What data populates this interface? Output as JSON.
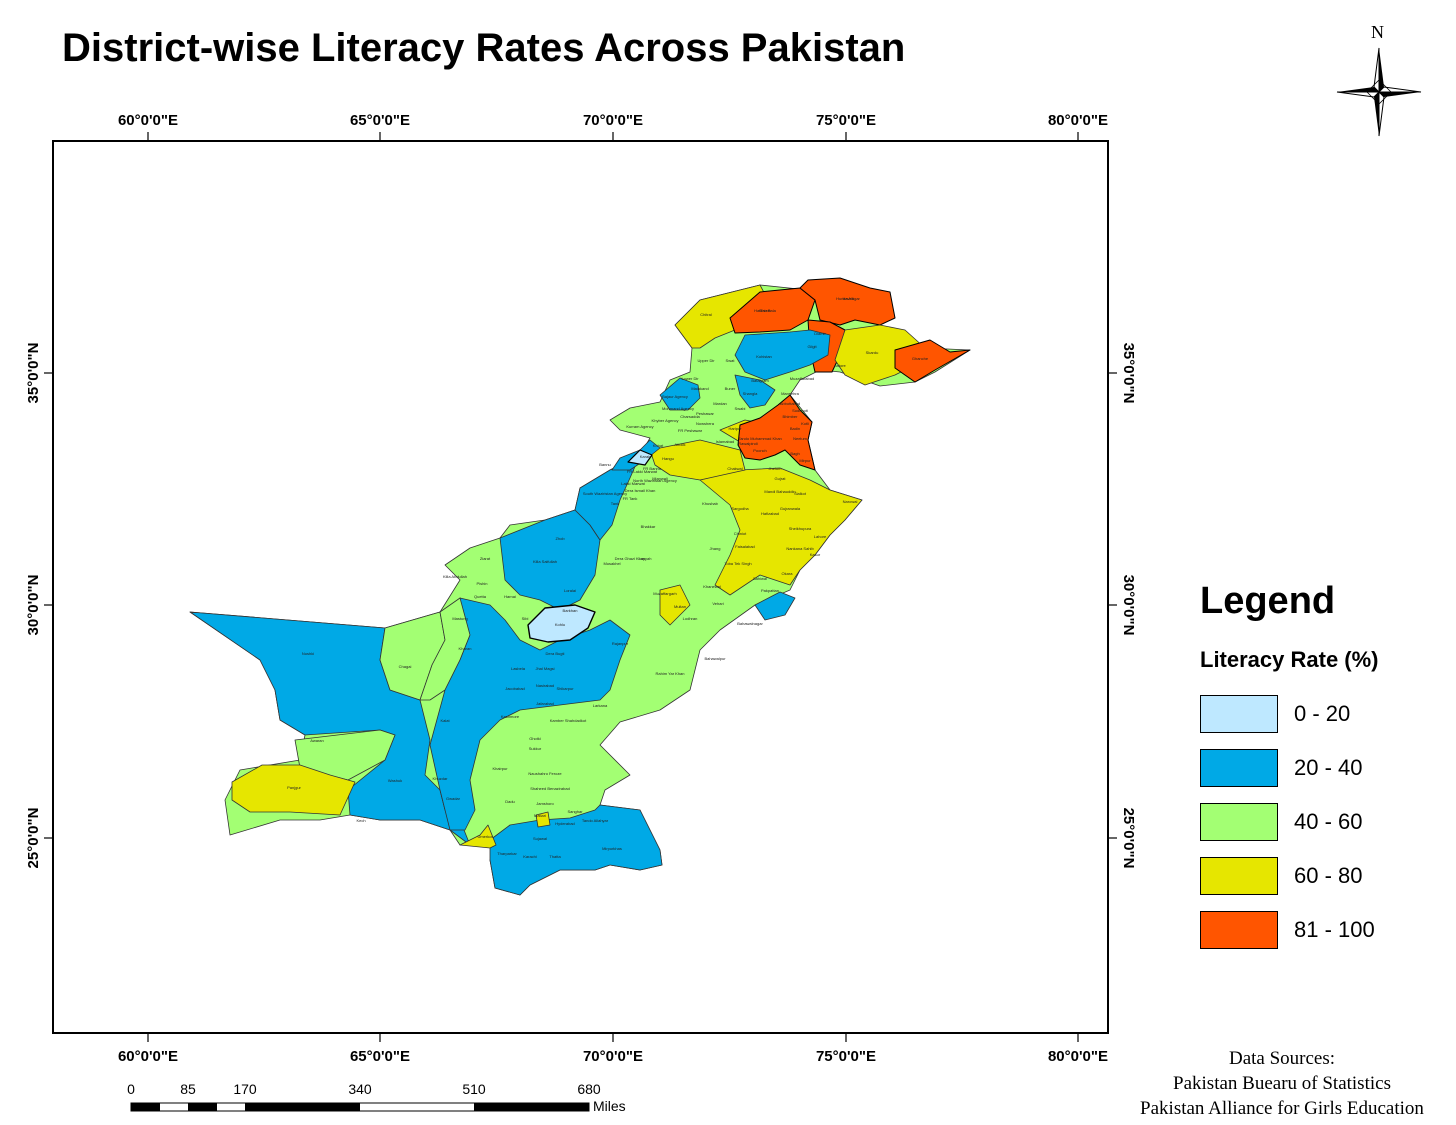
{
  "title": "District-wise Literacy Rates Across Pakistan",
  "north_arrow": {
    "label": "N",
    "icon": "north-arrow-icon"
  },
  "graticule": {
    "longitude_labels": [
      "60°0'0\"E",
      "65°0'0\"E",
      "70°0'0\"E",
      "75°0'0\"E",
      "80°0'0\"E"
    ],
    "latitude_labels": [
      "35°0'0\"N",
      "30°0'0\"N",
      "25°0'0\"N"
    ]
  },
  "legend": {
    "title": "Legend",
    "subtitle": "Literacy Rate (%)",
    "classes": [
      {
        "label": "0 - 20",
        "color": "#bee8ff"
      },
      {
        "label": "20 - 40",
        "color": "#00a9e6"
      },
      {
        "label": "40 - 60",
        "color": "#a3ff73"
      },
      {
        "label": "60 - 80",
        "color": "#e6e600"
      },
      {
        "label": "81 - 100",
        "color": "#ff5500"
      }
    ]
  },
  "scale_bar": {
    "ticks": [
      "0",
      "85",
      "170",
      "340",
      "510",
      "680"
    ],
    "unit": "Miles"
  },
  "sources": {
    "heading": "Data Sources:",
    "items": [
      "Pakistan Buearu of Statistics",
      "Pakistan Alliance for Girls Education"
    ]
  },
  "district_labels": [
    "Ghizer",
    "Hunza-Nagar",
    "Chitral",
    "Diamir",
    "Skardu",
    "Ghanche",
    "Astore",
    "Gilgit",
    "Upper Dir",
    "Swat",
    "Kohistan",
    "Batagram",
    "Mansehra",
    "Lower Dir",
    "Malakand",
    "Bajaur Agency",
    "Mohmand Agency",
    "Buner",
    "Shangla",
    "Mardan",
    "Swabi",
    "Charsadda",
    "Peshawar",
    "Nowshera",
    "Kurram Agency",
    "Khyber Agency",
    "FR Peshawar",
    "Haripur",
    "Abbottabad",
    "Muzaffarabad",
    "Neelum",
    "Bagh",
    "Poonch",
    "Rawalpindi",
    "Islamabad",
    "Attock",
    "Kohat",
    "Hangu",
    "Karak",
    "FR Bannu",
    "Bannu",
    "North Waziristan Agency",
    "Lakki Marwat",
    "FR Lakki Marwat",
    "FR Tank",
    "Tank",
    "South Waziristan Agency",
    "Dera Ismail Khan",
    "Mianwali",
    "Chakwal",
    "Jhelum",
    "Gujrat",
    "Sialkot",
    "Narowal",
    "Mandi Bahauddin",
    "Gujranwala",
    "Hafizabad",
    "Sargodha",
    "Khushab",
    "Sheikhupura",
    "Lahore",
    "Kasur",
    "Nankana Sahib",
    "Chiniot",
    "Faisalabad",
    "Toba Tek Singh",
    "Jhang",
    "Bhakkar",
    "Layyah",
    "Okara",
    "Sahiwal",
    "Pakpattan",
    "Vehari",
    "Khanewal",
    "Multan",
    "Lodhran",
    "Muzaffargarh",
    "Dera Ghazi Khan",
    "Rajanpur",
    "Bahawalnagar",
    "Bahawalpur",
    "Rahim Yar Khan",
    "Zhob",
    "Killa Saifullah",
    "Musakhel",
    "Loralai",
    "Barkhan",
    "Kohlu",
    "Dera Bugti",
    "Sibi",
    "Ziarat",
    "Pishin",
    "Killa Abdullah",
    "Quetta",
    "Harnai",
    "Mastung",
    "Nushki",
    "Chagai",
    "Kharan",
    "Kalat",
    "Khuzdar",
    "Washuk",
    "Awaran",
    "Panjgur",
    "Kech",
    "Gwadar",
    "Lasbela",
    "Jhal Magsi",
    "Nasirabad",
    "Jafarabad",
    "Jacobabad",
    "Kashmore",
    "Shikarpur",
    "Larkana",
    "Kamber Shahdadkot",
    "Ghotki",
    "Sukkur",
    "Khairpur",
    "Naushahro Feroze",
    "Dadu",
    "Shaheed Benazirabad",
    "Jamshoro",
    "Sanghar",
    "Matiari",
    "Hyderabad",
    "Tando Allahyar",
    "Mirpurkhas",
    "Umerkot",
    "Tharparkar",
    "Karachi",
    "Thatta",
    "Sujawal",
    "Badin",
    "Tando Muhammad Khan",
    "Mirpur",
    "Kotli",
    "Bhimber",
    "Sudhnoti",
    "Hattian Bala",
    "Haveli"
  ]
}
